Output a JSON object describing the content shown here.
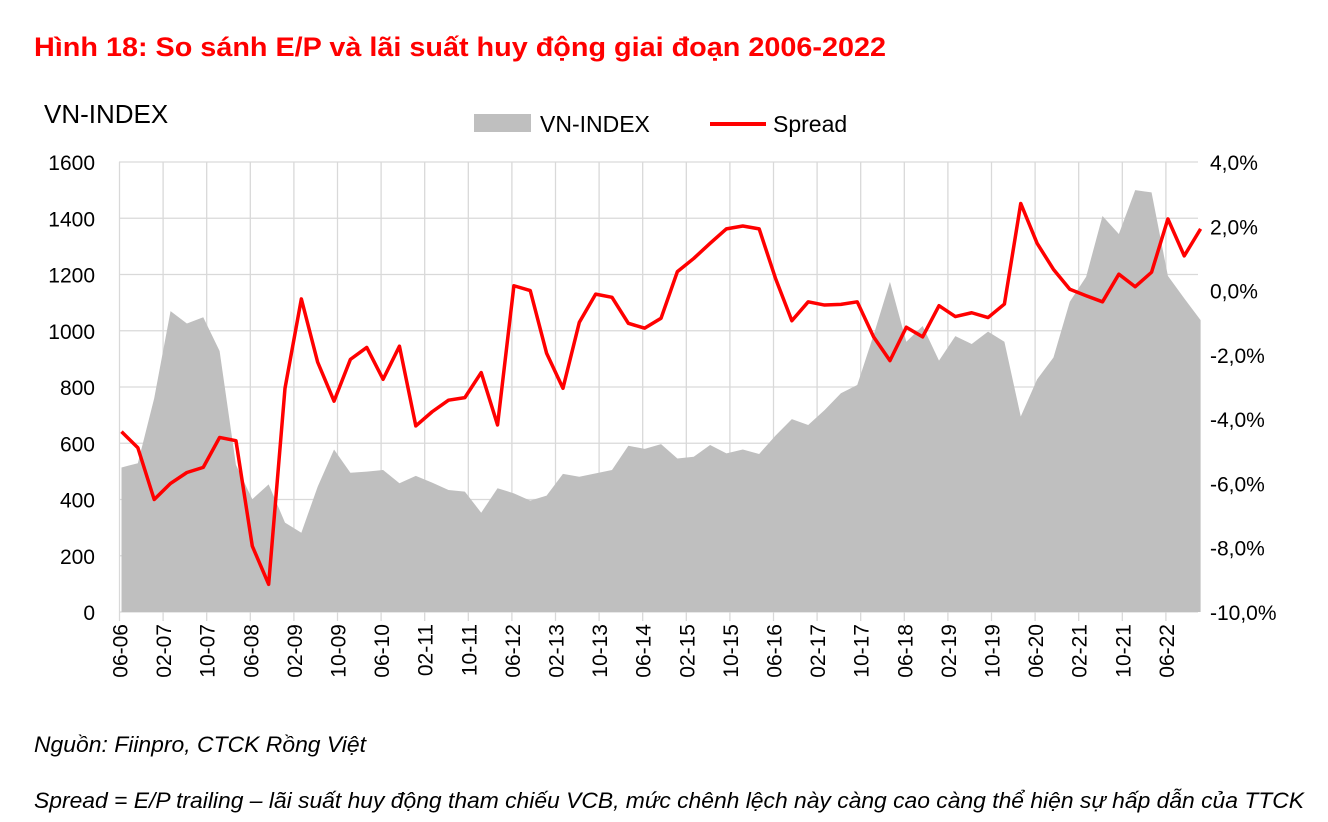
{
  "chart_data": {
    "type": "area+line",
    "title": "Hình 18: So sánh E/P và lãi suất huy động giai đoạn 2006-2022",
    "left_axis_title": "VN-INDEX",
    "legend": [
      {
        "name": "VN-INDEX",
        "kind": "area",
        "color": "#bfbfbf"
      },
      {
        "name": "Spread",
        "kind": "line",
        "color": "#ff0000"
      }
    ],
    "legend_placement": "top-center",
    "grid": true,
    "y_left": {
      "min": 0,
      "max": 1600,
      "ticks": [
        "0",
        "200",
        "400",
        "600",
        "800",
        "1000",
        "1200",
        "1400",
        "1600"
      ]
    },
    "y_right": {
      "min": -10,
      "max": 4,
      "unit": "%",
      "ticks": [
        "-10,0%",
        "-8,0%",
        "-6,0%",
        "-4,0%",
        "-2,0%",
        "0,0%",
        "2,0%",
        "4,0%"
      ]
    },
    "x_tick_labels": [
      "06-06",
      "02-07",
      "10-07",
      "06-08",
      "02-09",
      "10-09",
      "06-10",
      "02-11",
      "10-11",
      "06-12",
      "02-13",
      "10-13",
      "06-14",
      "02-15",
      "10-15",
      "06-16",
      "02-17",
      "10-17",
      "06-18",
      "02-19",
      "10-19",
      "06-20",
      "02-21",
      "10-21",
      "06-22"
    ],
    "x_start": "06-06",
    "x_step_months": 3,
    "series": [
      {
        "name": "VN-INDEX",
        "axis": "left",
        "values": [
          514,
          529,
          760,
          1070,
          1026,
          1048,
          928,
          523,
          401,
          454,
          318,
          282,
          446,
          578,
          495,
          499,
          505,
          458,
          484,
          460,
          434,
          428,
          353,
          440,
          422,
          396,
          414,
          491,
          481,
          493,
          505,
          591,
          580,
          597,
          546,
          552,
          594,
          564,
          578,
          562,
          627,
          686,
          665,
          718,
          778,
          807,
          985,
          1174,
          961,
          1017,
          894,
          981,
          953,
          997,
          961,
          695,
          827,
          905,
          1103,
          1192,
          1408,
          1344,
          1500,
          1492,
          1195,
          1115,
          1038
        ]
      },
      {
        "name": "Spread",
        "axis": "right",
        "values": [
          -4.39,
          -4.89,
          -6.5,
          -6.0,
          -5.66,
          -5.5,
          -4.57,
          -4.67,
          -7.95,
          -9.14,
          -3.04,
          -0.26,
          -2.23,
          -3.44,
          -2.14,
          -1.77,
          -2.76,
          -1.73,
          -4.21,
          -3.77,
          -3.41,
          -3.33,
          -2.55,
          -4.18,
          0.15,
          0.0,
          -1.95,
          -3.04,
          -0.99,
          -0.11,
          -0.21,
          -1.02,
          -1.17,
          -0.86,
          0.59,
          1.0,
          1.47,
          1.92,
          2.01,
          1.92,
          0.38,
          -0.94,
          -0.35,
          -0.45,
          -0.43,
          -0.35,
          -1.44,
          -2.18,
          -1.14,
          -1.44,
          -0.47,
          -0.81,
          -0.69,
          -0.84,
          -0.42,
          2.71,
          1.47,
          0.66,
          0.04,
          -0.16,
          -0.35,
          0.51,
          0.12,
          0.57,
          2.23,
          1.08,
          1.92
        ]
      }
    ]
  },
  "footnotes": {
    "source": "Nguồn: Fiinpro, CTCK Rồng Việt",
    "definition": "Spread = E/P trailing – lãi suất huy động tham chiếu VCB, mức chênh lệch này càng cao càng thể hiện sự hấp dẫn của TTCK"
  }
}
